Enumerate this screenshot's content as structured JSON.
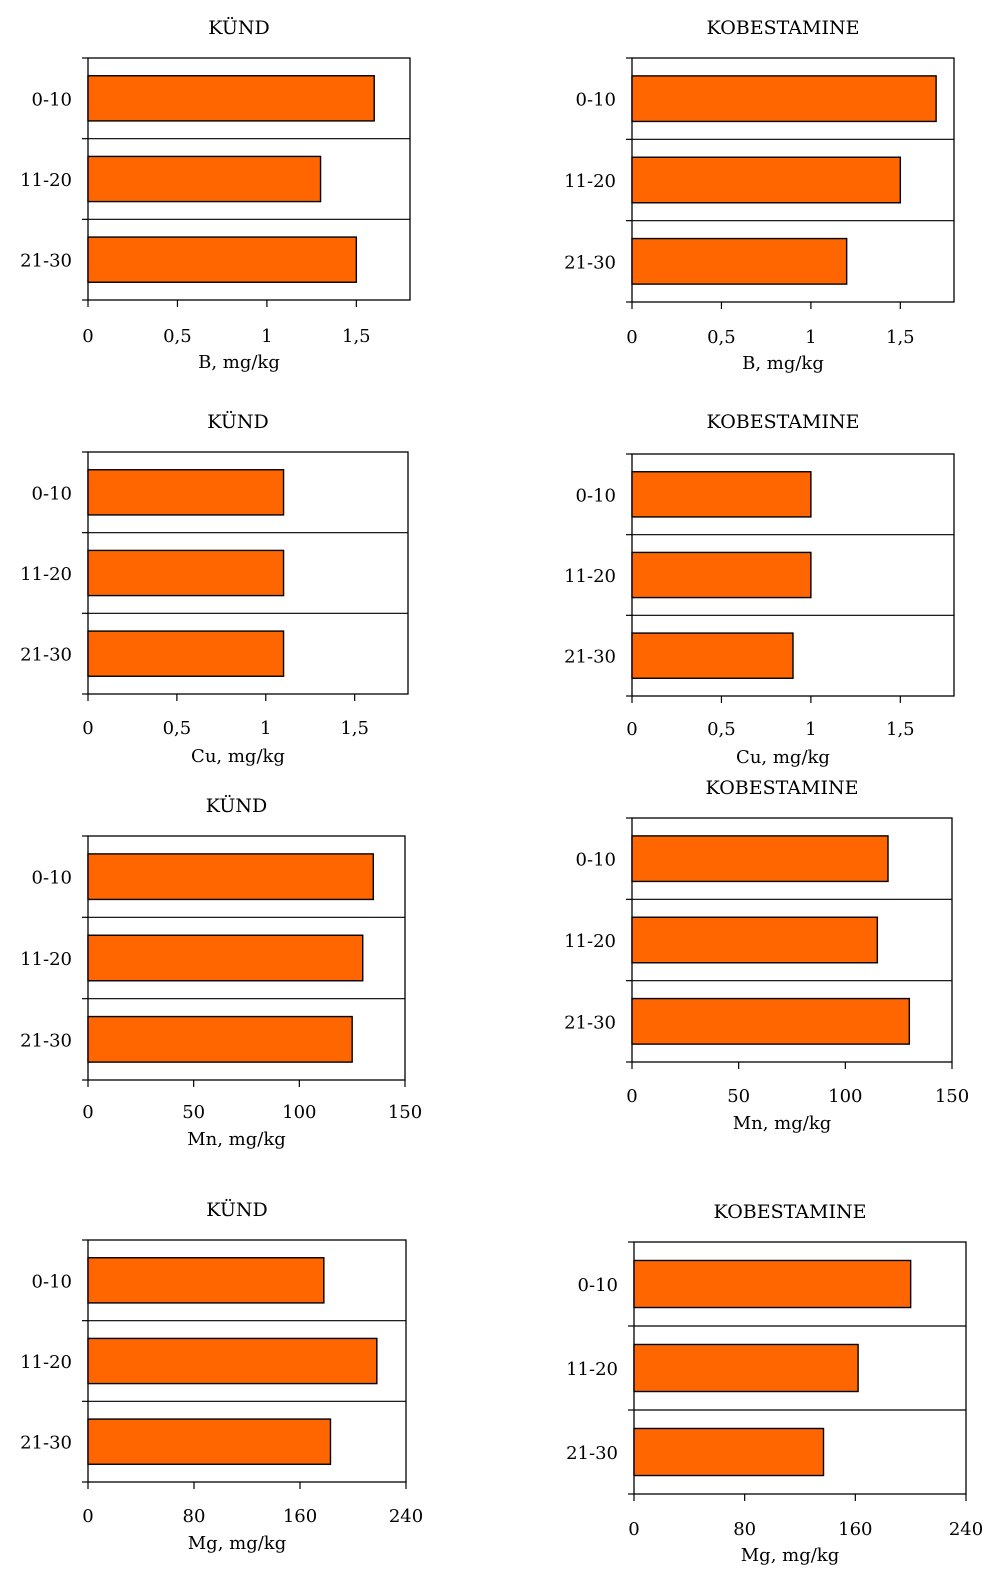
{
  "colors": {
    "bar_fill": "#FF6600",
    "bar_stroke": "#000000",
    "axis": "#000000"
  },
  "chart_data": [
    {
      "type": "bar",
      "orientation": "horizontal",
      "title": "KÜND",
      "xlabel": "B, mg/kg",
      "categories": [
        "0-10",
        "11-20",
        "21-30"
      ],
      "values": [
        1.6,
        1.3,
        1.5
      ],
      "xlim": [
        0,
        1.8
      ],
      "xticks": [
        "0",
        "0,5",
        "1",
        "1,5"
      ],
      "grid": false,
      "legend": "none"
    },
    {
      "type": "bar",
      "orientation": "horizontal",
      "title": "KOBESTAMINE",
      "xlabel": "B, mg/kg",
      "categories": [
        "0-10",
        "11-20",
        "21-30"
      ],
      "values": [
        1.7,
        1.5,
        1.2
      ],
      "xlim": [
        0,
        1.8
      ],
      "xticks": [
        "0",
        "0,5",
        "1",
        "1,5"
      ],
      "grid": false,
      "legend": "none"
    },
    {
      "type": "bar",
      "orientation": "horizontal",
      "title": "KÜND",
      "xlabel": "Cu, mg/kg",
      "categories": [
        "0-10",
        "11-20",
        "21-30"
      ],
      "values": [
        1.1,
        1.1,
        1.1
      ],
      "xlim": [
        0,
        1.8
      ],
      "xticks": [
        "0",
        "0,5",
        "1",
        "1,5"
      ],
      "grid": false,
      "legend": "none"
    },
    {
      "type": "bar",
      "orientation": "horizontal",
      "title": "KOBESTAMINE",
      "xlabel": "Cu, mg/kg",
      "categories": [
        "0-10",
        "11-20",
        "21-30"
      ],
      "values": [
        1.0,
        1.0,
        0.9
      ],
      "xlim": [
        0,
        1.8
      ],
      "xticks": [
        "0",
        "0,5",
        "1",
        "1,5"
      ],
      "grid": false,
      "legend": "none"
    },
    {
      "type": "bar",
      "orientation": "horizontal",
      "title": "KÜND",
      "xlabel": "Mn, mg/kg",
      "categories": [
        "0-10",
        "11-20",
        "21-30"
      ],
      "values": [
        135,
        130,
        125
      ],
      "xlim": [
        0,
        150
      ],
      "xticks": [
        "0",
        "50",
        "100",
        "150"
      ],
      "grid": false,
      "legend": "none"
    },
    {
      "type": "bar",
      "orientation": "horizontal",
      "title": "KOBESTAMINE",
      "xlabel": "Mn, mg/kg",
      "categories": [
        "0-10",
        "11-20",
        "21-30"
      ],
      "values": [
        120,
        115,
        130
      ],
      "xlim": [
        0,
        150
      ],
      "xticks": [
        "0",
        "50",
        "100",
        "150"
      ],
      "grid": false,
      "legend": "none"
    },
    {
      "type": "bar",
      "orientation": "horizontal",
      "title": "KÜND",
      "xlabel": "Mg, mg/kg",
      "categories": [
        "0-10",
        "11-20",
        "21-30"
      ],
      "values": [
        178,
        218,
        183
      ],
      "xlim": [
        0,
        240
      ],
      "xticks": [
        "0",
        "80",
        "160",
        "240"
      ],
      "grid": false,
      "legend": "none"
    },
    {
      "type": "bar",
      "orientation": "horizontal",
      "title": "KOBESTAMINE",
      "xlabel": "Mg, mg/kg",
      "categories": [
        "0-10",
        "11-20",
        "21-30"
      ],
      "values": [
        200,
        162,
        137
      ],
      "xlim": [
        0,
        240
      ],
      "xticks": [
        "0",
        "80",
        "160",
        "240"
      ],
      "grid": false,
      "legend": "none"
    }
  ]
}
